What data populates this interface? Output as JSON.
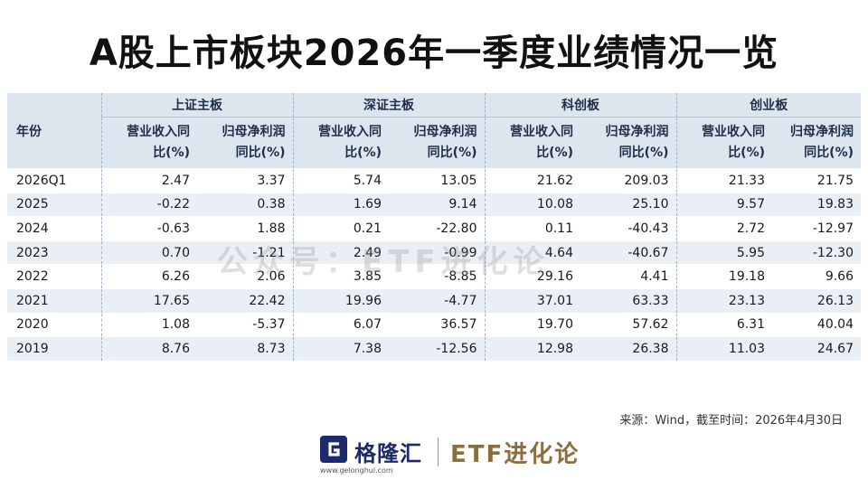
{
  "title": "A股上市板块2026年一季度业绩情况一览",
  "table": {
    "year_header": "年份",
    "groups": [
      "上证主板",
      "深证主板",
      "科创板",
      "创业板"
    ],
    "sub_headers": [
      {
        "line1": "营业收入同",
        "line2": "比(%)"
      },
      {
        "line1": "归母净利润",
        "line2": "同比(%)"
      }
    ],
    "rows": [
      {
        "year": "2026Q1",
        "values": [
          "2.47",
          "3.37",
          "5.74",
          "13.05",
          "21.62",
          "209.03",
          "21.33",
          "21.75"
        ]
      },
      {
        "year": "2025",
        "values": [
          "-0.22",
          "0.38",
          "1.69",
          "9.14",
          "10.08",
          "25.10",
          "9.57",
          "19.83"
        ]
      },
      {
        "year": "2024",
        "values": [
          "-0.63",
          "1.88",
          "0.21",
          "-22.80",
          "0.11",
          "-40.43",
          "2.72",
          "-12.97"
        ]
      },
      {
        "year": "2023",
        "values": [
          "0.70",
          "-1.21",
          "2.49",
          "-0.99",
          "4.64",
          "-40.67",
          "5.95",
          "-12.30"
        ]
      },
      {
        "year": "2022",
        "values": [
          "6.26",
          "2.06",
          "3.85",
          "-8.85",
          "29.16",
          "4.41",
          "19.18",
          "9.66"
        ]
      },
      {
        "year": "2021",
        "values": [
          "17.65",
          "22.42",
          "19.96",
          "-4.77",
          "37.01",
          "63.33",
          "23.13",
          "26.13"
        ]
      },
      {
        "year": "2020",
        "values": [
          "1.08",
          "-5.37",
          "6.07",
          "36.57",
          "19.70",
          "57.62",
          "6.31",
          "40.04"
        ]
      },
      {
        "year": "2019",
        "values": [
          "8.76",
          "8.73",
          "7.38",
          "-12.56",
          "12.98",
          "26.38",
          "11.03",
          "24.67"
        ]
      }
    ]
  },
  "watermark": "公众号：ETF进化论",
  "source": "来源：Wind，截至时间：2026年4月30日",
  "footer": {
    "logo_name": "格隆汇",
    "logo_url": "www.gelonghui.com",
    "brand": "ETF进化论"
  },
  "colors": {
    "header_bg": "#dde5ef",
    "row_alt_bg": "#eaeff5",
    "logo_blue": "#1d2a6b",
    "brand_gold": "#8a6e3c"
  }
}
